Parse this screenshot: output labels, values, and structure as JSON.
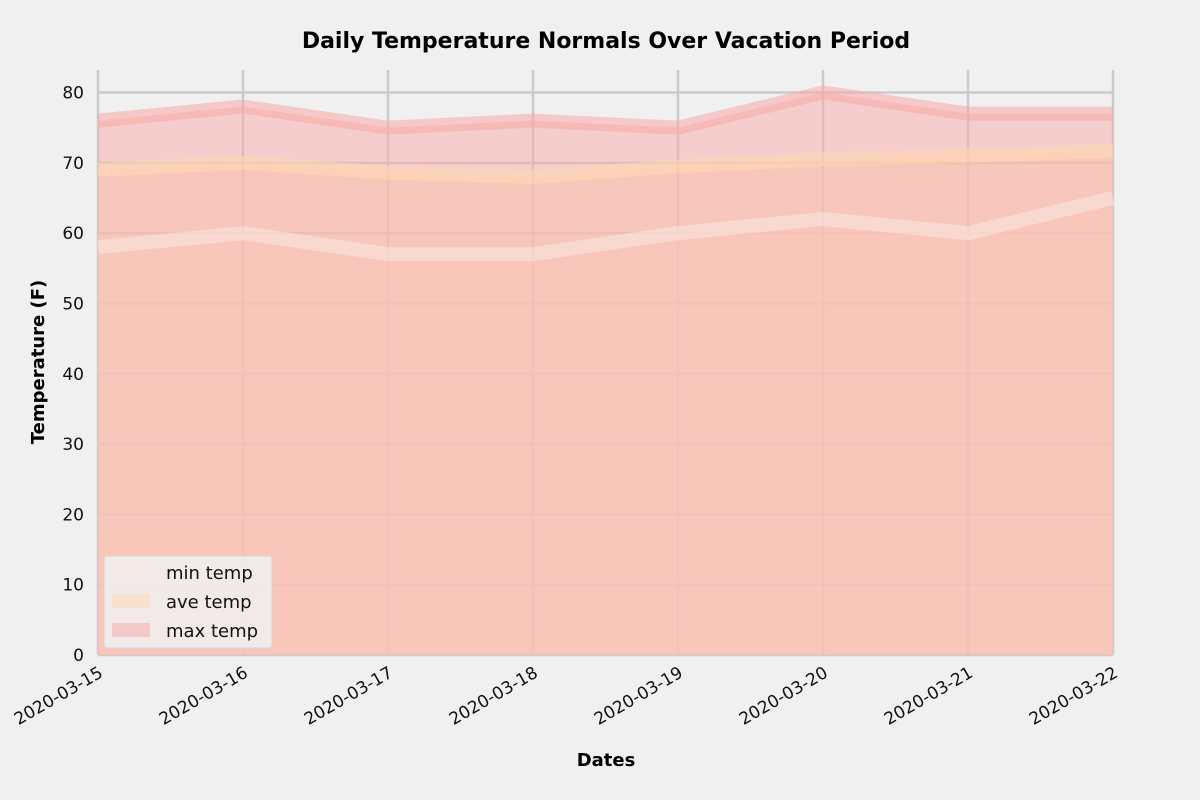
{
  "chart_data": {
    "type": "area",
    "title": "Daily Temperature Normals Over Vacation Period",
    "xlabel": "Dates",
    "ylabel": "Temperature (F)",
    "x": [
      "2020-03-15",
      "2020-03-16",
      "2020-03-17",
      "2020-03-18",
      "2020-03-19",
      "2020-03-20",
      "2020-03-21",
      "2020-03-22"
    ],
    "ylim": [
      0,
      80
    ],
    "yticks": [
      0,
      10,
      20,
      30,
      40,
      50,
      60,
      70,
      80
    ],
    "grid": true,
    "stacked": false,
    "legend_position": "lower-left",
    "series": [
      {
        "name": "min temp",
        "values": [
          58.0,
          60.0,
          57.0,
          57.0,
          60.0,
          62.0,
          60.0,
          65.0
        ],
        "color": "#f7e7e0"
      },
      {
        "name": "ave temp",
        "values": [
          69.0,
          70.0,
          68.6,
          68.0,
          69.5,
          70.5,
          71.0,
          71.7
        ],
        "color": "#ffd8b1"
      },
      {
        "name": "max temp",
        "values": [
          76.0,
          78.0,
          75.0,
          76.0,
          75.0,
          80.0,
          77.0,
          77.0
        ],
        "color": "#f7a9a8"
      }
    ]
  }
}
